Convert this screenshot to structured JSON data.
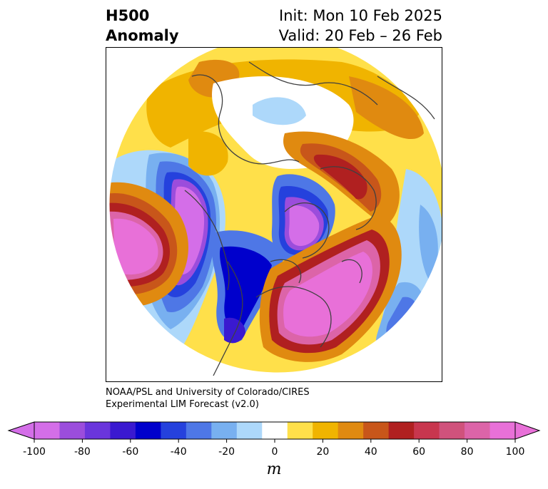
{
  "title": {
    "variable": "H500",
    "subtitle": "Anomaly",
    "init": "Init: Mon 10 Feb 2025",
    "valid": "Valid: 20 Feb – 26 Feb"
  },
  "credit": {
    "line1": "NOAA/PSL and University of Colorado/CIRES",
    "line2": "Experimental LIM Forecast (v2.0)"
  },
  "colorbar": {
    "unit": "m",
    "ticks": [
      "-100",
      "-80",
      "-60",
      "-40",
      "-20",
      "0",
      "20",
      "40",
      "60",
      "80",
      "100"
    ],
    "levels": [
      -100,
      -90,
      -80,
      -70,
      -60,
      -50,
      -40,
      -30,
      -20,
      -10,
      10,
      20,
      30,
      40,
      50,
      60,
      70,
      80,
      90,
      100
    ],
    "colors": [
      "#d46ee8",
      "#9b4ddc",
      "#6a35dc",
      "#3a19d0",
      "#0000cc",
      "#2541dd",
      "#4e77e6",
      "#78b0f0",
      "#add8fa",
      "#ffffff",
      "#ffe04a",
      "#f0b400",
      "#e08a10",
      "#c8561a",
      "#b02020",
      "#c8364e",
      "#d0527c",
      "#dc64a8",
      "#e870d8"
    ]
  },
  "map": {
    "projection": "north polar stereographic",
    "field": "500 hPa geopotential height anomaly",
    "anomaly_features": [
      {
        "region": "North Pacific / Bering Sea",
        "sign": "negative",
        "peak_m": -100
      },
      {
        "region": "Canadian Arctic / Baffin Bay",
        "sign": "negative",
        "peak_m": -100
      },
      {
        "region": "Western United States",
        "sign": "negative",
        "peak_m": -60
      },
      {
        "region": "Eastern North America / Western Atlantic",
        "sign": "positive",
        "peak_m": 100
      },
      {
        "region": "Greenland / Iceland",
        "sign": "positive",
        "peak_m": 60
      },
      {
        "region": "Northern Europe",
        "sign": "positive",
        "peak_m": 40
      },
      {
        "region": "Eastern Atlantic",
        "sign": "negative",
        "peak_m": -40
      }
    ]
  }
}
